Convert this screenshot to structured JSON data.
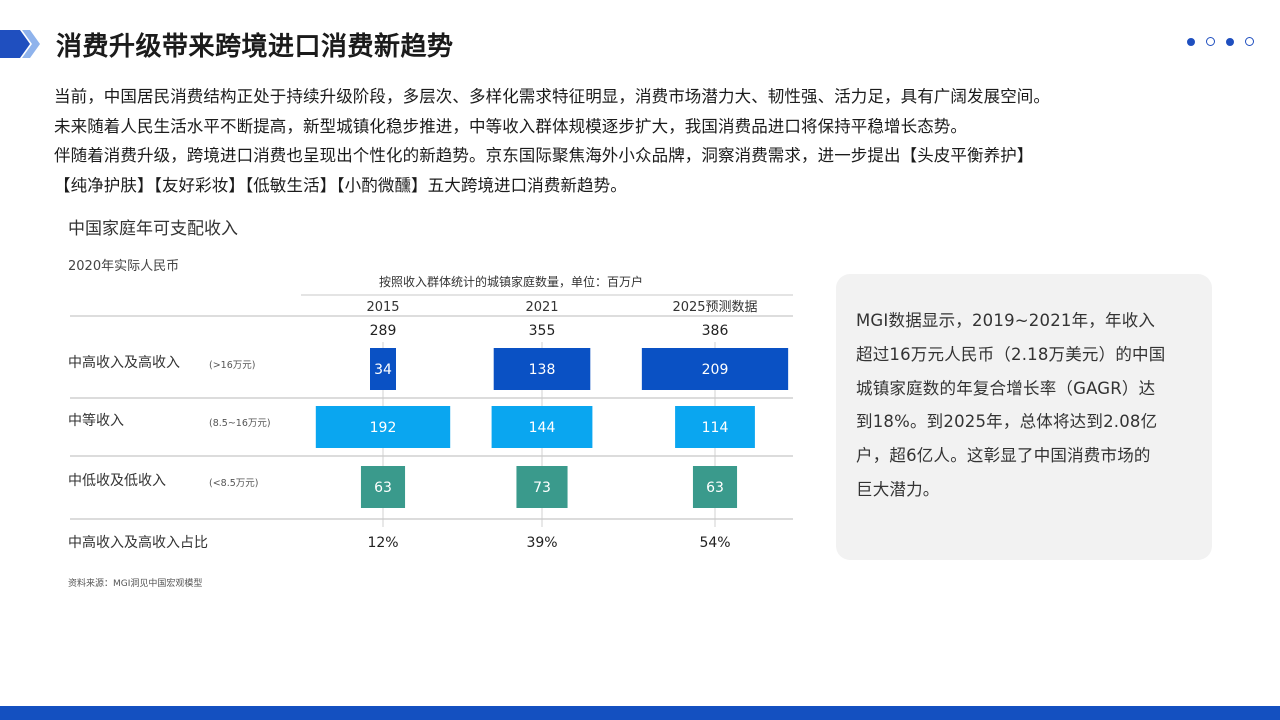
{
  "header": {
    "title": "消费升级带来跨境进口消费新趋势",
    "accent_color": "#1f4fbf",
    "page_indicator": {
      "total": 4
    }
  },
  "intro": {
    "lines": [
      "当前，中国居民消费结构正处于持续升级阶段，多层次、多样化需求特征明显，消费市场潜力大、韧性强、活力足，具有广阔发展空间。",
      "未来随着人民生活水平不断提高，新型城镇化稳步推进，中等收入群体规模逐步扩大，我国消费品进口将保持平稳增长态势。",
      "伴随着消费升级，跨境进口消费也呈现出个性化的新趋势。京东国际聚焦海外小众品牌，洞察消费需求，进一步提出【头皮平衡养护】",
      "【纯净护肤】【友好彩妆】【低敏生活】【小酌微醺】五大跨境进口消费新趋势。"
    ]
  },
  "chart_header": {
    "title": "中国家庭年可支配收入",
    "subtitle": "2020年实际人民币",
    "source": "资料来源：MGI洞见中国宏观模型"
  },
  "chart_data": {
    "type": "table",
    "title": "中国家庭年可支配收入",
    "subtitle": "2020年实际人民币",
    "header": "按照收入群体统计的城镇家庭数量，单位：百万户",
    "columns": [
      "2015",
      "2021",
      "2025预测数据"
    ],
    "totals": [
      "289",
      "355",
      "386"
    ],
    "rows": [
      {
        "label": "中高收入及高收入",
        "range": "(>16万元)",
        "color": "#0a51c4",
        "values": [
          34,
          138,
          209
        ]
      },
      {
        "label": "中等收入",
        "range": "(8.5~16万元)",
        "color": "#0aa6f0",
        "values": [
          192,
          144,
          114
        ]
      },
      {
        "label": "中低收及低收入",
        "range": "(<8.5万元)",
        "color": "#3a9a8c",
        "values": [
          63,
          73,
          63
        ]
      }
    ],
    "share_row": {
      "label": "中高收入及高收入占比",
      "values": [
        "12%",
        "39%",
        "54%"
      ]
    },
    "source": "资料来源：MGI洞见中国宏观模型"
  },
  "callout": {
    "lines": [
      "MGI数据显示，2019~2021年，年收入",
      "超过16万元人民币（2.18万美元）的中国",
      "城镇家庭数的年复合增长率（GAGR）达",
      "到18%。到2025年，总体将达到2.08亿",
      "户，超6亿人。这彰显了中国消费市场的",
      "巨大潜力。"
    ]
  },
  "footer": {
    "color": "#1450c0"
  }
}
